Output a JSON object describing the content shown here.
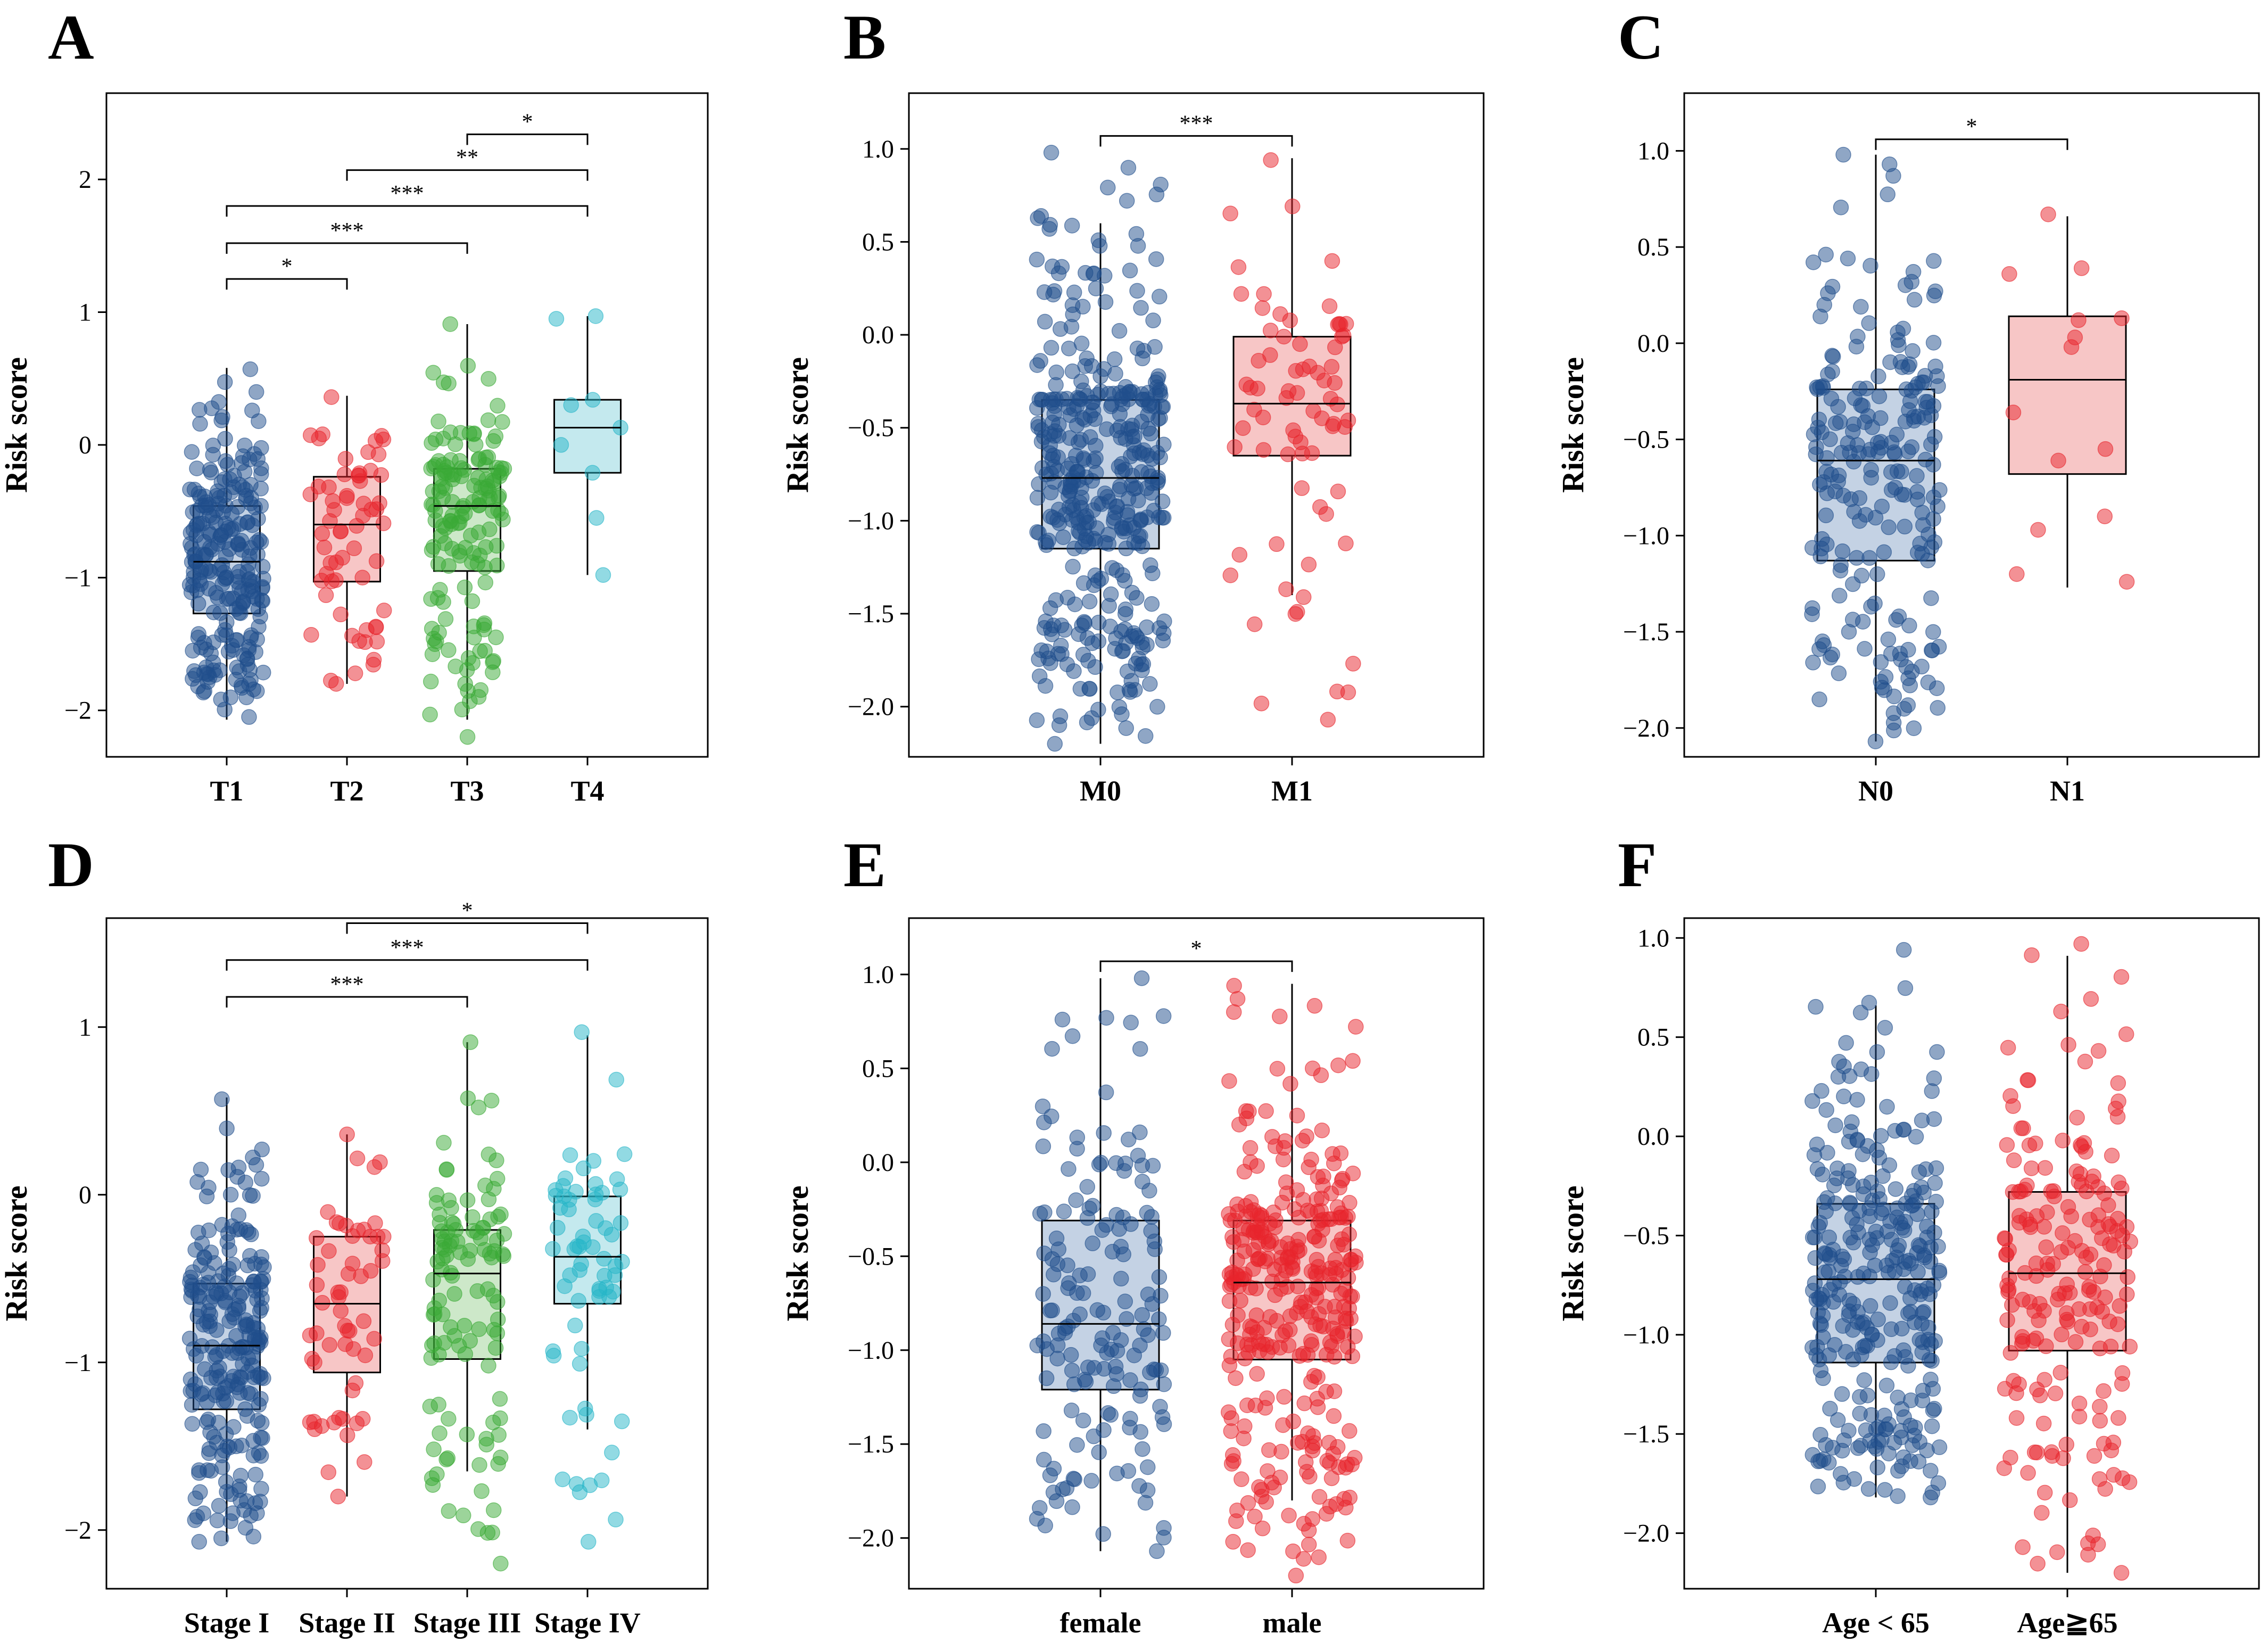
{
  "chart_data": [
    {
      "panel": "A",
      "type": "box",
      "ylabel": "Risk score",
      "ylim": [
        -2.35,
        2.65
      ],
      "yticks": [
        -2,
        -1,
        0,
        1,
        2
      ],
      "tick_text": [
        "−2",
        "−1",
        "0",
        "1",
        "2"
      ],
      "categories": [
        "T1",
        "T2",
        "T3",
        "T4"
      ],
      "colors": [
        "#1f4e8c",
        "#e8242b",
        "#3aaa35",
        "#26b5c8"
      ],
      "fills": [
        "#c4d2e4",
        "#f7c6c6",
        "#cde8c9",
        "#c4e9ee"
      ],
      "boxes": [
        {
          "q1": -1.27,
          "median": -0.88,
          "q3": -0.46,
          "min": -2.07,
          "max": 0.58,
          "n": 240,
          "min_pt": -2.05,
          "max_pt": 0.57
        },
        {
          "q1": -1.03,
          "median": -0.6,
          "q3": -0.24,
          "min": -1.8,
          "max": 0.37,
          "n": 60,
          "min_pt": -1.8,
          "max_pt": 0.36
        },
        {
          "q1": -0.95,
          "median": -0.46,
          "q3": -0.18,
          "min": -2.07,
          "max": 0.91,
          "n": 150,
          "min_pt": -2.2,
          "max_pt": 0.91
        },
        {
          "q1": -0.21,
          "median": 0.13,
          "q3": 0.34,
          "min": -0.98,
          "max": 0.97,
          "n": 9,
          "points": [
            0.97,
            0.95,
            0.34,
            0.3,
            0.13,
            0.0,
            -0.21,
            -0.55,
            -0.98
          ]
        }
      ],
      "comparisons": [
        {
          "from": 0,
          "to": 1,
          "label": "*",
          "y": 1.25
        },
        {
          "from": 0,
          "to": 2,
          "label": "***",
          "y": 1.52
        },
        {
          "from": 0,
          "to": 3,
          "label": "***",
          "y": 1.8
        },
        {
          "from": 1,
          "to": 3,
          "label": "**",
          "y": 2.07
        },
        {
          "from": 2,
          "to": 3,
          "label": "*",
          "y": 2.34
        }
      ]
    },
    {
      "panel": "B",
      "type": "box",
      "ylabel": "Risk score",
      "ylim": [
        -2.27,
        1.3
      ],
      "yticks": [
        -2.0,
        -1.5,
        -1.0,
        -0.5,
        0.0,
        0.5,
        1.0
      ],
      "tick_text": [
        "−2.0",
        "−1.5",
        "−1.0",
        "−0.5",
        "0.0",
        "0.5",
        "1.0"
      ],
      "categories": [
        "M0",
        "M1"
      ],
      "colors": [
        "#1f4e8c",
        "#e8242b"
      ],
      "fills": [
        "#c4d2e4",
        "#f7c6c6"
      ],
      "boxes": [
        {
          "q1": -1.15,
          "median": -0.77,
          "q3": -0.35,
          "min": -2.2,
          "max": 0.6,
          "n": 400,
          "min_pt": -2.2,
          "max_pt": 0.98
        },
        {
          "q1": -0.65,
          "median": -0.37,
          "q3": -0.01,
          "min": -1.4,
          "max": 0.95,
          "n": 70,
          "min_pt": -2.07,
          "max_pt": 0.94
        }
      ],
      "comparisons": [
        {
          "from": 0,
          "to": 1,
          "label": "***",
          "y": 1.07
        }
      ]
    },
    {
      "panel": "C",
      "type": "box",
      "ylabel": "Risk score",
      "ylim": [
        -2.15,
        1.3
      ],
      "yticks": [
        -2.0,
        -1.5,
        -1.0,
        -0.5,
        0.0,
        0.5,
        1.0
      ],
      "tick_text": [
        "−2.0",
        "−1.5",
        "−1.0",
        "−0.5",
        "0.0",
        "0.5",
        "1.0"
      ],
      "categories": [
        "N0",
        "N1"
      ],
      "colors": [
        "#1f4e8c",
        "#e8242b"
      ],
      "fills": [
        "#c4d2e4",
        "#f7c6c6"
      ],
      "boxes": [
        {
          "q1": -1.13,
          "median": -0.61,
          "q3": -0.24,
          "min": -2.07,
          "max": 0.98,
          "n": 220,
          "min_pt": -2.07,
          "max_pt": 0.98
        },
        {
          "q1": -0.68,
          "median": -0.19,
          "q3": 0.14,
          "min": -1.27,
          "max": 0.66,
          "n": 14,
          "points": [
            0.67,
            0.39,
            0.36,
            0.13,
            0.12,
            0.03,
            -0.02,
            -0.36,
            -0.55,
            -0.61,
            -0.9,
            -0.97,
            -1.2,
            -1.24
          ]
        }
      ],
      "comparisons": [
        {
          "from": 0,
          "to": 1,
          "label": "*",
          "y": 1.06
        }
      ]
    },
    {
      "panel": "D",
      "type": "box",
      "ylabel": "Risk score",
      "ylim": [
        -2.35,
        1.65
      ],
      "yticks": [
        -2,
        -1,
        0,
        1
      ],
      "tick_text": [
        "−2",
        "−1",
        "0",
        "1"
      ],
      "categories": [
        "Stage I",
        "Stage II",
        "Stage III",
        "Stage IV"
      ],
      "colors": [
        "#1f4e8c",
        "#e8242b",
        "#3aaa35",
        "#26b5c8"
      ],
      "fills": [
        "#c4d2e4",
        "#f7c6c6",
        "#cde8c9",
        "#c4e9ee"
      ],
      "boxes": [
        {
          "q1": -1.28,
          "median": -0.9,
          "q3": -0.53,
          "min": -2.07,
          "max": 0.58,
          "n": 230,
          "min_pt": -2.07,
          "max_pt": 0.57
        },
        {
          "q1": -1.06,
          "median": -0.65,
          "q3": -0.25,
          "min": -1.8,
          "max": 0.36,
          "n": 55,
          "min_pt": -1.8,
          "max_pt": 0.36
        },
        {
          "q1": -0.98,
          "median": -0.47,
          "q3": -0.21,
          "min": -1.65,
          "max": 0.91,
          "n": 110,
          "min_pt": -2.2,
          "max_pt": 0.91
        },
        {
          "q1": -0.65,
          "median": -0.37,
          "q3": -0.01,
          "min": -1.4,
          "max": 0.95,
          "n": 65,
          "min_pt": -2.07,
          "max_pt": 0.97
        }
      ],
      "comparisons": [
        {
          "from": 0,
          "to": 2,
          "label": "***",
          "y": 1.18
        },
        {
          "from": 0,
          "to": 3,
          "label": "***",
          "y": 1.4
        },
        {
          "from": 1,
          "to": 3,
          "label": "*",
          "y": 1.62
        }
      ]
    },
    {
      "panel": "E",
      "type": "box",
      "ylabel": "Risk score",
      "ylim": [
        -2.27,
        1.3
      ],
      "yticks": [
        -2.0,
        -1.5,
        -1.0,
        -0.5,
        0.0,
        0.5,
        1.0
      ],
      "tick_text": [
        "−2.0",
        "−1.5",
        "−1.0",
        "−0.5",
        "0.0",
        "0.5",
        "1.0"
      ],
      "categories": [
        "female",
        "male"
      ],
      "colors": [
        "#1f4e8c",
        "#e8242b"
      ],
      "fills": [
        "#c4d2e4",
        "#f7c6c6"
      ],
      "boxes": [
        {
          "q1": -1.21,
          "median": -0.86,
          "q3": -0.31,
          "min": -2.07,
          "max": 0.98,
          "n": 160,
          "min_pt": -2.07,
          "max_pt": 0.98
        },
        {
          "q1": -1.05,
          "median": -0.64,
          "q3": -0.31,
          "min": -1.8,
          "max": 0.95,
          "n": 330,
          "min_pt": -2.2,
          "max_pt": 0.94
        }
      ],
      "comparisons": [
        {
          "from": 0,
          "to": 1,
          "label": "*",
          "y": 1.07
        }
      ]
    },
    {
      "panel": "F",
      "type": "box",
      "ylabel": "Risk score",
      "ylim": [
        -2.28,
        1.1
      ],
      "yticks": [
        -2.0,
        -1.5,
        -1.0,
        -0.5,
        0.0,
        0.5,
        1.0
      ],
      "tick_text": [
        "−2.0",
        "−1.5",
        "−1.0",
        "−0.5",
        "0.0",
        "0.5",
        "1.0"
      ],
      "categories": [
        "Age < 65",
        "Age≧65"
      ],
      "colors": [
        "#1f4e8c",
        "#e8242b"
      ],
      "fills": [
        "#c4d2e4",
        "#f7c6c6"
      ],
      "boxes": [
        {
          "q1": -1.14,
          "median": -0.72,
          "q3": -0.34,
          "min": -1.82,
          "max": 0.66,
          "n": 300,
          "min_pt": -1.82,
          "max_pt": 0.94
        },
        {
          "q1": -1.08,
          "median": -0.69,
          "q3": -0.28,
          "min": -2.2,
          "max": 0.91,
          "n": 190,
          "min_pt": -2.2,
          "max_pt": 0.97
        }
      ],
      "comparisons": []
    }
  ]
}
